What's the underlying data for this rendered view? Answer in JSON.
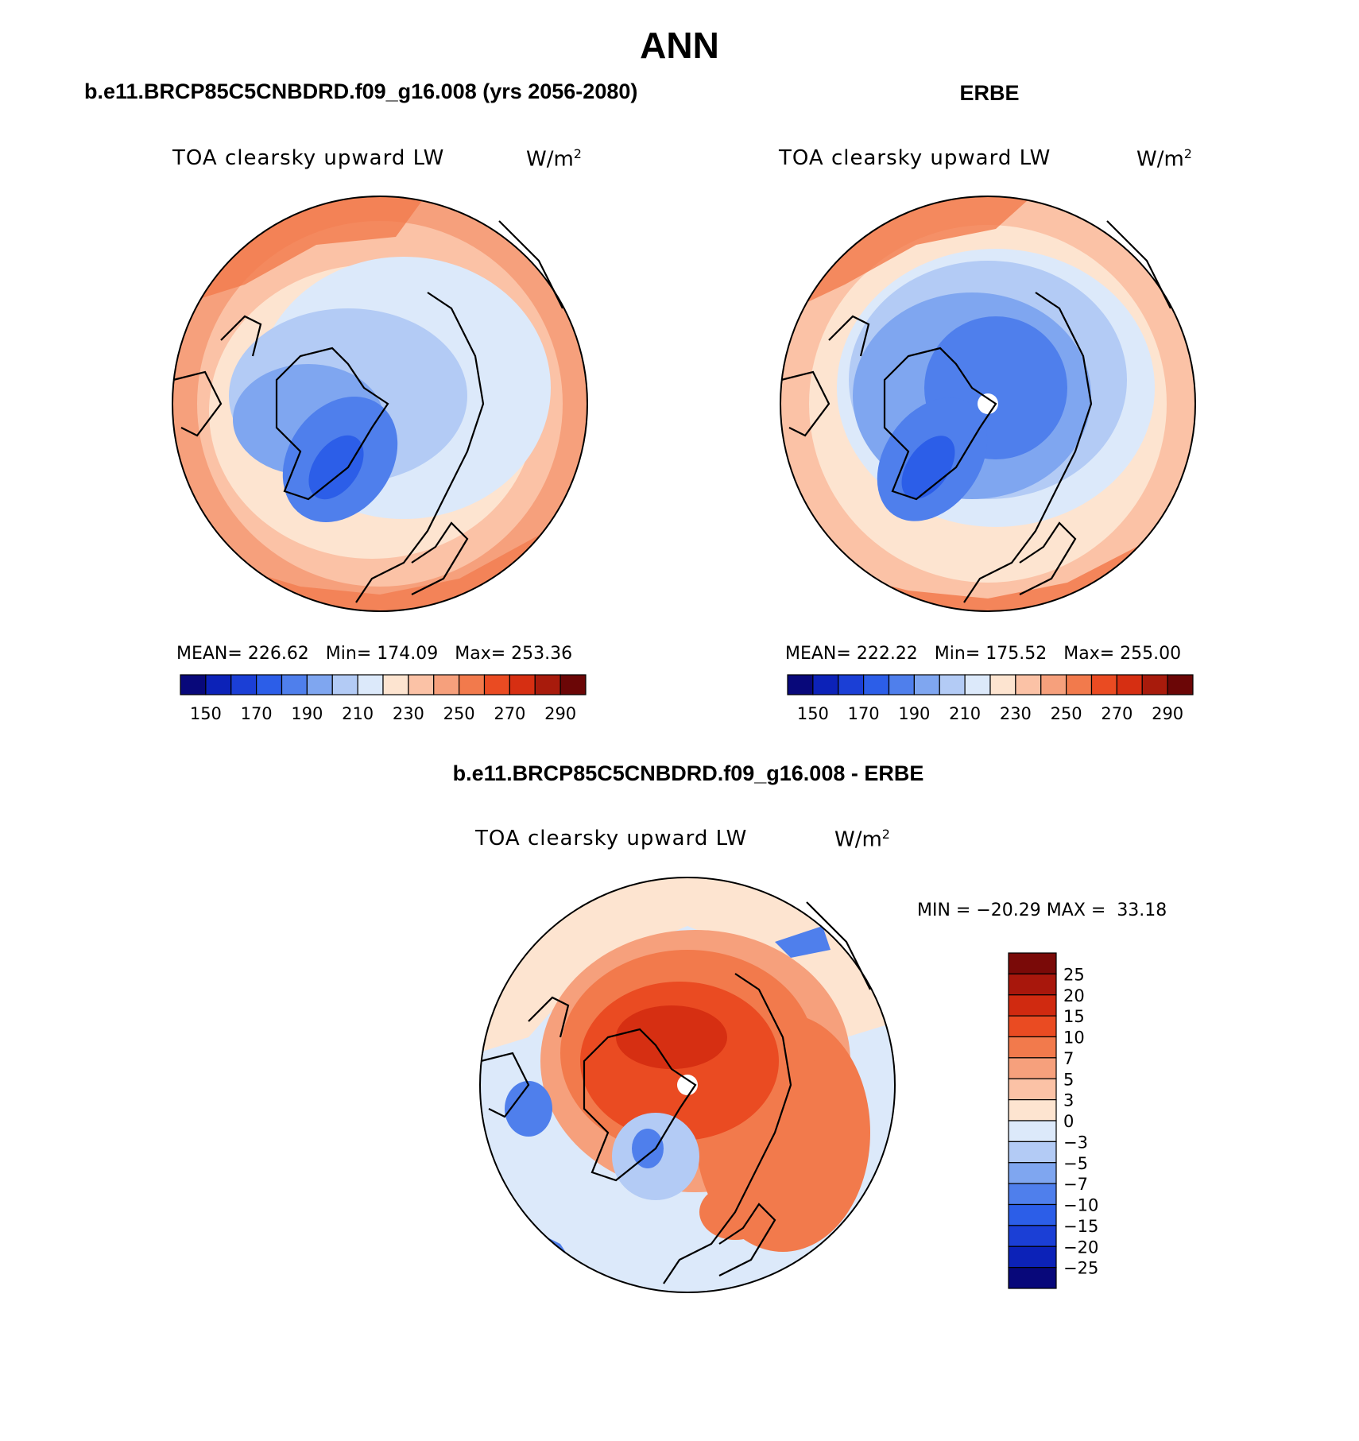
{
  "figure_title": "ANN",
  "panels": {
    "model": {
      "header": "b.e11.BRCP85C5CNBDRD.f09_g16.008 (yrs 2056-2080)",
      "variable": "TOA clearsky upward LW",
      "units": "W/m",
      "units_exp": "2",
      "stats": {
        "mean_label": "MEAN=",
        "mean": "226.62",
        "min_label": "Min=",
        "min": "174.09",
        "max_label": "Max=",
        "max": "253.36"
      }
    },
    "obs": {
      "header": "ERBE",
      "variable": "TOA clearsky upward LW",
      "units": "W/m",
      "units_exp": "2",
      "stats": {
        "mean_label": "MEAN=",
        "mean": "222.22",
        "min_label": "Min=",
        "min": "175.52",
        "max_label": "Max=",
        "max": "255.00"
      }
    },
    "diff": {
      "header": "b.e11.BRCP85C5CNBDRD.f09_g16.008 - ERBE",
      "variable": "TOA clearsky upward LW",
      "units": "W/m",
      "units_exp": "2",
      "stats": {
        "min_label": "MIN =",
        "min": "−20.29",
        "max_label": "MAX =",
        "max": "33.18"
      }
    }
  },
  "abs_colorbar": {
    "labels": [
      "150",
      "170",
      "190",
      "210",
      "230",
      "250",
      "270",
      "290"
    ],
    "colors": [
      "#08087a",
      "#0c22b8",
      "#1b3fd6",
      "#2c5ee8",
      "#4f7fec",
      "#7fa6f0",
      "#b3cbf5",
      "#dce9fa",
      "#fde4d0",
      "#fbc2a6",
      "#f6a07c",
      "#f27a4c",
      "#ea4b22",
      "#d62f12",
      "#a81b0c",
      "#6b0606"
    ]
  },
  "diff_colorbar": {
    "labels": [
      "25",
      "20",
      "15",
      "10",
      "7",
      "5",
      "3",
      "0",
      "−3",
      "−5",
      "−7",
      "−10",
      "−15",
      "−20",
      "−25"
    ],
    "colors": [
      "#7a0a08",
      "#a8170c",
      "#d02a10",
      "#ea4b22",
      "#f27a4c",
      "#f6a07c",
      "#fbc2a6",
      "#fde4d0",
      "#dce9fa",
      "#b3cbf5",
      "#7fa6f0",
      "#4f7fec",
      "#2c5ee8",
      "#1b3fd6",
      "#0c22b8",
      "#08087a"
    ]
  }
}
